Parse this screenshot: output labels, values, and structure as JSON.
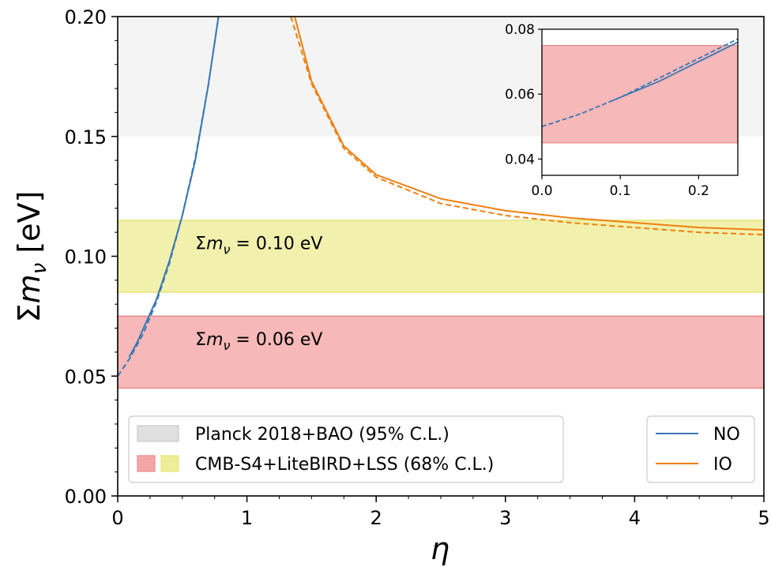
{
  "chart_data": {
    "type": "line",
    "xlabel": "η",
    "ylabel": "Σm_ν [eV]",
    "xlim": [
      0,
      5
    ],
    "ylim": [
      0,
      0.2
    ],
    "x_ticks": [
      "0",
      "1",
      "2",
      "3",
      "4",
      "5"
    ],
    "y_ticks": [
      "0.00",
      "0.05",
      "0.10",
      "0.15",
      "0.20"
    ],
    "grid": false,
    "colors": {
      "NO": "#3a78b5",
      "IO": "#f07f10",
      "planck": "#e0e0e0",
      "lss_red": "#f4a6a6",
      "lss_yellow": "#eeee99"
    },
    "bands": [
      {
        "name": "Planck 2018+BAO (95% C.L.)",
        "y_range": [
          0.15,
          0.2
        ],
        "color": "#e6e6e6"
      },
      {
        "name": "Σm_ν = 0.10 eV",
        "y_range": [
          0.085,
          0.115
        ],
        "color": "#eeee99"
      },
      {
        "name": "Σm_ν = 0.06 eV",
        "y_range": [
          0.045,
          0.075
        ],
        "color": "#f4a6a6"
      }
    ],
    "annotations": [
      {
        "label": "Σm_ν = 0.10 eV",
        "x": 0.6,
        "y": 0.103
      },
      {
        "label": "Σm_ν = 0.06 eV",
        "x": 0.6,
        "y": 0.063
      }
    ],
    "series": [
      {
        "name": "NO",
        "style": "solid",
        "x": [
          0.09,
          0.15,
          0.2,
          0.3,
          0.4,
          0.5,
          0.6,
          0.7,
          0.78
        ],
        "y": [
          0.058,
          0.064,
          0.07,
          0.082,
          0.098,
          0.117,
          0.14,
          0.171,
          0.2
        ]
      },
      {
        "name": "NO",
        "style": "dashed",
        "x": [
          0.0,
          0.1,
          0.2,
          0.3,
          0.4,
          0.5,
          0.6,
          0.7,
          0.78
        ],
        "y": [
          0.05,
          0.058,
          0.068,
          0.081,
          0.097,
          0.117,
          0.141,
          0.171,
          0.2
        ]
      },
      {
        "name": "IO",
        "style": "solid",
        "x": [
          1.37,
          1.5,
          1.75,
          2.0,
          2.5,
          3.0,
          3.5,
          4.0,
          4.5,
          5.0
        ],
        "y": [
          0.2,
          0.173,
          0.146,
          0.134,
          0.124,
          0.119,
          0.116,
          0.114,
          0.112,
          0.111
        ]
      },
      {
        "name": "IO",
        "style": "dashed",
        "x": [
          1.34,
          1.5,
          1.75,
          2.0,
          2.5,
          3.0,
          3.5,
          4.0,
          4.5,
          5.0
        ],
        "y": [
          0.2,
          0.172,
          0.145,
          0.133,
          0.122,
          0.117,
          0.114,
          0.112,
          0.11,
          0.109
        ]
      }
    ],
    "legend_bands": {
      "placement": "lower-left",
      "entries": [
        "Planck 2018+BAO (95% C.L.)",
        "CMB-S4+LiteBIRD+LSS (68% C.L.)"
      ]
    },
    "legend_lines": {
      "placement": "lower-right",
      "entries": [
        "NO",
        "IO"
      ]
    },
    "inset": {
      "xlim": [
        0.0,
        0.25
      ],
      "ylim": [
        0.035,
        0.08
      ],
      "x_ticks": [
        "0.0",
        "0.1",
        "0.2"
      ],
      "y_ticks": [
        "0.04",
        "0.06",
        "0.08"
      ],
      "band": {
        "y_range": [
          0.045,
          0.075
        ],
        "color": "#f4a6a6"
      },
      "series": [
        {
          "name": "NO",
          "style": "solid",
          "x": [
            0.09,
            0.15,
            0.2,
            0.25
          ],
          "y": [
            0.058,
            0.064,
            0.07,
            0.076
          ]
        },
        {
          "name": "NO",
          "style": "dashed",
          "x": [
            0.0,
            0.05,
            0.1,
            0.15,
            0.2,
            0.25
          ],
          "y": [
            0.05,
            0.054,
            0.059,
            0.065,
            0.071,
            0.077
          ]
        }
      ]
    }
  }
}
